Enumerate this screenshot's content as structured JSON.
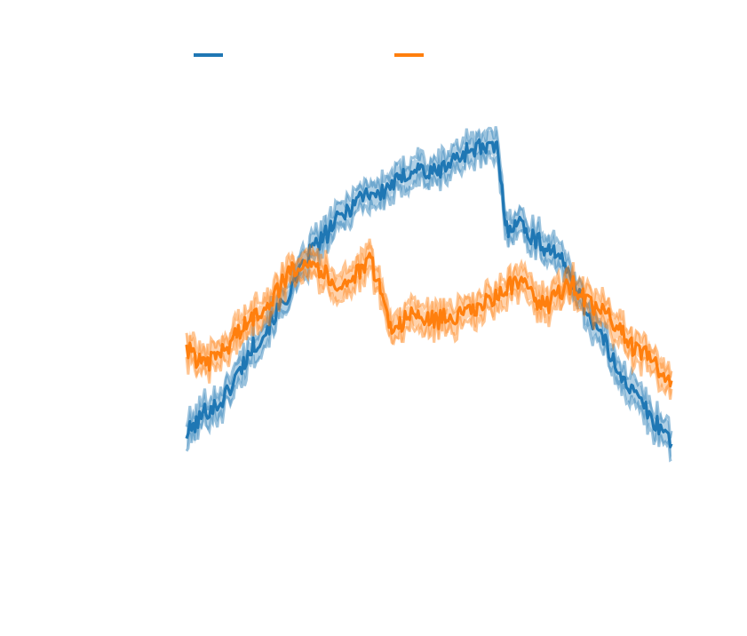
{
  "chart_data": {
    "type": "line",
    "title": "",
    "xlabel": "",
    "ylabel": "",
    "grid": false,
    "legend_placement": "top",
    "xlim": [
      0,
      100
    ],
    "ylim": [
      0,
      100
    ],
    "band_halfwidth": 3.5,
    "series": [
      {
        "color": "#1f77b4",
        "x": [
          0,
          2,
          4,
          6,
          8,
          10,
          12,
          14,
          16,
          18,
          20,
          22,
          24,
          26,
          28,
          30,
          32,
          34,
          36,
          38,
          40,
          42,
          44,
          46,
          48,
          50,
          52,
          54,
          56,
          58,
          60,
          62,
          64,
          66,
          68,
          70,
          72,
          74,
          76,
          78,
          80,
          82,
          84,
          86,
          88,
          90,
          92,
          94,
          96,
          98,
          100
        ],
        "y": [
          8,
          11,
          15,
          16,
          19,
          24,
          29,
          34,
          37,
          42,
          46,
          51,
          56,
          62,
          64,
          68,
          71,
          74,
          77,
          78,
          77,
          80,
          81,
          84,
          85,
          83,
          84,
          86,
          88,
          90,
          91,
          90,
          91,
          67,
          70,
          67,
          64,
          62,
          61,
          56,
          52,
          45,
          40,
          35,
          29,
          25,
          20,
          17,
          12,
          10,
          6
        ]
      },
      {
        "color": "#ff7f0e",
        "x": [
          0,
          2,
          4,
          6,
          8,
          10,
          12,
          14,
          16,
          18,
          20,
          22,
          24,
          26,
          28,
          30,
          32,
          34,
          36,
          38,
          40,
          42,
          44,
          46,
          48,
          50,
          52,
          54,
          56,
          58,
          60,
          62,
          64,
          66,
          68,
          70,
          72,
          74,
          76,
          78,
          80,
          82,
          84,
          86,
          88,
          90,
          92,
          94,
          96,
          98,
          100
        ],
        "y": [
          33,
          30,
          27,
          31,
          32,
          37,
          39,
          42,
          45,
          48,
          52,
          56,
          58,
          58,
          55,
          52,
          51,
          53,
          55,
          58,
          50,
          39,
          40,
          42,
          42,
          41,
          41,
          42,
          42,
          43,
          44,
          46,
          48,
          50,
          52,
          50,
          47,
          45,
          47,
          51,
          51,
          47,
          44,
          43,
          41,
          37,
          33,
          31,
          30,
          26,
          22
        ]
      }
    ]
  }
}
